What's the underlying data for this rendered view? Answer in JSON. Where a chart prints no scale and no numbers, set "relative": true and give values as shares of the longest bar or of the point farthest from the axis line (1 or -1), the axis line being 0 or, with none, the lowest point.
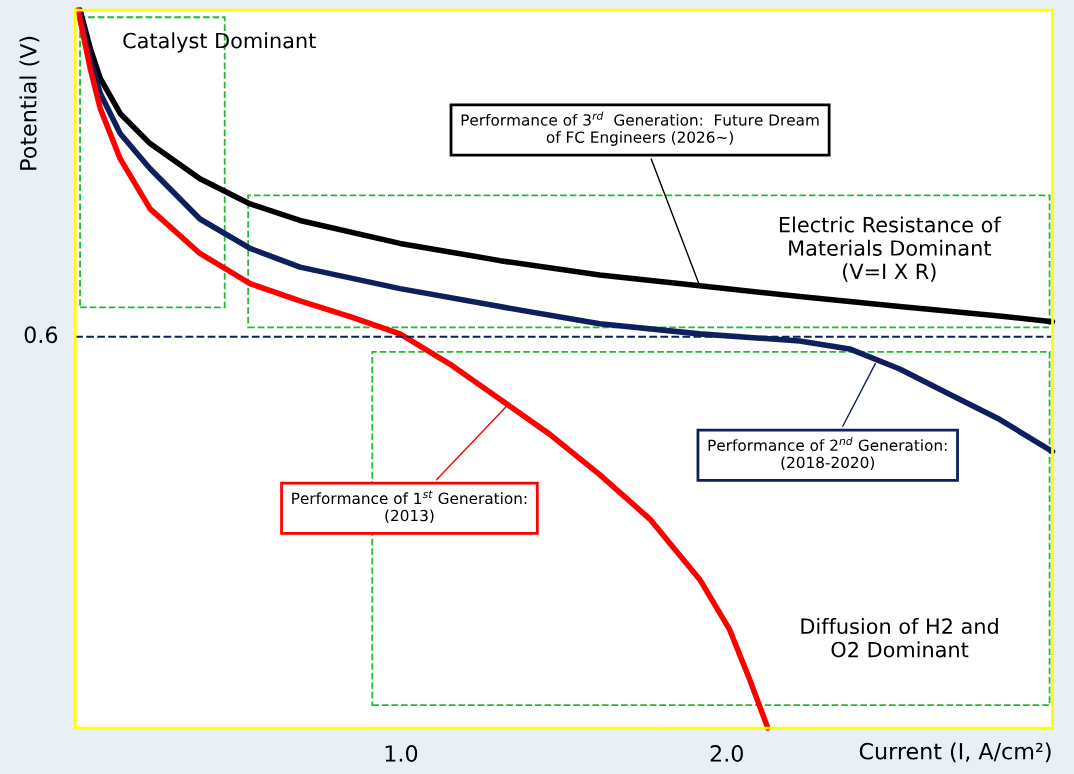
{
  "chart_data": {
    "type": "line",
    "relative": true,
    "xlabel": "Current (I, A/cm²)",
    "ylabel": "Potential (V)",
    "xlim": [
      0,
      3.0
    ],
    "xticks": [
      {
        "value": 1.0,
        "label": "1.0"
      },
      {
        "value": 2.0,
        "label": "2.0"
      }
    ],
    "grid": false,
    "line_style": "solid",
    "marker": "none",
    "series": [
      {
        "color": "#000000",
        "x": [
          0.015,
          0.046,
          0.077,
          0.138,
          0.23,
          0.383,
          0.537,
          0.69,
          0.997,
          1.304,
          1.61,
          1.917,
          2.224,
          2.531,
          2.837,
          3.0
        ],
        "values": [
          1.0,
          0.947,
          0.905,
          0.856,
          0.814,
          0.765,
          0.73,
          0.707,
          0.675,
          0.651,
          0.631,
          0.616,
          0.601,
          0.587,
          0.574,
          0.566
        ]
      },
      {
        "color": "#0d1f5c",
        "x": [
          0.015,
          0.046,
          0.077,
          0.138,
          0.23,
          0.383,
          0.537,
          0.69,
          0.997,
          1.304,
          1.61,
          1.917,
          2.224,
          2.377,
          2.531,
          2.684,
          2.837,
          3.0
        ],
        "values": [
          0.996,
          0.933,
          0.884,
          0.828,
          0.779,
          0.709,
          0.668,
          0.642,
          0.612,
          0.587,
          0.563,
          0.549,
          0.539,
          0.528,
          0.5,
          0.465,
          0.43,
          0.385
        ]
      },
      {
        "color": "#ff0000",
        "x": [
          0.009,
          0.046,
          0.077,
          0.138,
          0.23,
          0.383,
          0.537,
          0.69,
          0.844,
          0.997,
          1.15,
          1.304,
          1.457,
          1.61,
          1.764,
          1.917,
          2.009,
          2.071,
          2.117,
          2.126
        ],
        "values": [
          1.0,
          0.919,
          0.863,
          0.793,
          0.723,
          0.661,
          0.619,
          0.595,
          0.573,
          0.549,
          0.507,
          0.458,
          0.409,
          0.353,
          0.291,
          0.207,
          0.137,
          0.067,
          0.011,
          0
        ]
      }
    ],
    "ref_lines": [
      {
        "axis": "y",
        "value": 0.545,
        "color": "#0d1f5c",
        "line_style": "dashed"
      }
    ],
    "annotations": [
      "Catalyst Dominant",
      "Electric Resistance of\nMaterials Dominant\n(V=I X R)",
      "Diffusion of H2 and\nO2 Dominant",
      "0.6",
      {
        "text": "Performance of 3$^{rd}$  Generation:  Future Dream\nof FC Engineers (2026~)",
        "x": 1.917,
        "y": 0.616
      },
      {
        "text": "Performance of 2$^{nd}$ Generation:\n(2018-2020)",
        "x": 2.46,
        "y": 0.511
      },
      {
        "text": "Performance of 1$^{st}$ Generation:\n(2013)",
        "x": 1.33,
        "y": 0.451
      }
    ]
  }
}
